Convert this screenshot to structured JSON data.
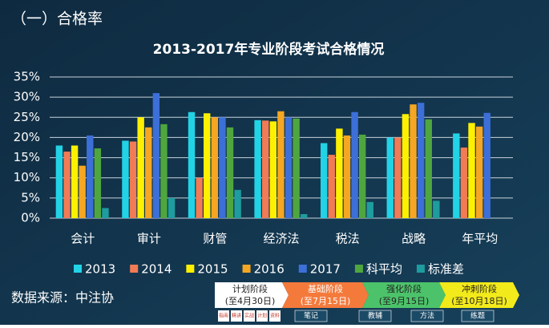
{
  "heading": "（一）合格率",
  "source": "数据来源：中注协",
  "timeline": {
    "stages": [
      {
        "label": "计划阶段",
        "date": "(至4月30日)"
      },
      {
        "label": "基础阶段",
        "date": "(至7月15日)"
      },
      {
        "label": "强化阶段",
        "date": "(至9月15日)"
      },
      {
        "label": "冲刺阶段",
        "date": "(至10月18日)"
      }
    ],
    "items": [
      "指南",
      "精讲",
      "实战",
      "计划",
      "资料",
      "笔记",
      "教辅",
      "方法",
      "练题"
    ]
  },
  "chart_data": {
    "type": "bar",
    "title": "2013-2017年专业阶段考试合格情况",
    "categories": [
      "会计",
      "审计",
      "财管",
      "经济法",
      "税法",
      "战略",
      "年平均"
    ],
    "series": [
      {
        "name": "2013",
        "color": "#22d3e6",
        "values": [
          18,
          19.2,
          26.3,
          24.3,
          18.6,
          20,
          21
        ]
      },
      {
        "name": "2014",
        "color": "#f07b55",
        "values": [
          16.5,
          19,
          10,
          24.2,
          15.7,
          20,
          17.5
        ]
      },
      {
        "name": "2015",
        "color": "#fff000",
        "values": [
          18,
          25,
          26,
          24,
          22.2,
          25.8,
          23.6
        ]
      },
      {
        "name": "2016",
        "color": "#f5a623",
        "values": [
          13,
          22.5,
          25,
          26.5,
          20.5,
          28.2,
          22.7
        ]
      },
      {
        "name": "2017",
        "color": "#3d6fd8",
        "values": [
          20.5,
          31,
          25,
          25,
          26.3,
          28.6,
          26.1
        ]
      },
      {
        "name": "科平均",
        "color": "#4fa63f",
        "values": [
          17.3,
          23.3,
          22.5,
          24.7,
          20.7,
          24.5,
          null
        ]
      },
      {
        "name": "标准差",
        "color": "#1e9c9e",
        "values": [
          2.5,
          5,
          7,
          1,
          4,
          4.3,
          null
        ]
      }
    ],
    "ylim": [
      0,
      35
    ],
    "yticks": [
      {
        "value": 0,
        "label": "0%"
      },
      {
        "value": 5,
        "label": "5%"
      },
      {
        "value": 10,
        "label": "10%"
      },
      {
        "value": 15,
        "label": "15%"
      },
      {
        "value": 20,
        "label": "20%"
      },
      {
        "value": 25,
        "label": "25%"
      },
      {
        "value": 30,
        "label": "30%"
      },
      {
        "value": 35,
        "label": "35%"
      }
    ],
    "grid": true
  }
}
